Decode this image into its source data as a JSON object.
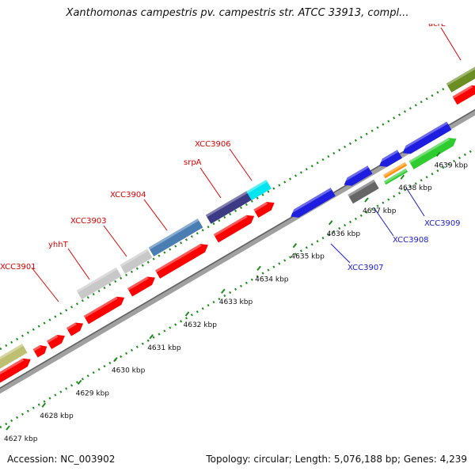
{
  "header": {
    "title": "Xanthomonas campestris pv. campestris str. ATCC 33913, compl..."
  },
  "footer": {
    "accession": "Accession: NC_003902",
    "summary": "Topology: circular; Length: 5,076,188 bp; Genes: 4,239"
  },
  "ruler": {
    "unit_suffix": " kbp",
    "ticks": [
      {
        "kbp": "4627"
      },
      {
        "kbp": "4628"
      },
      {
        "kbp": "4629"
      },
      {
        "kbp": "4630"
      },
      {
        "kbp": "4631"
      },
      {
        "kbp": "4632"
      },
      {
        "kbp": "4633"
      },
      {
        "kbp": "4634"
      },
      {
        "kbp": "4635"
      },
      {
        "kbp": "4636"
      },
      {
        "kbp": "4637"
      },
      {
        "kbp": "4638"
      },
      {
        "kbp": "4639"
      }
    ]
  },
  "colors": {
    "backbone": "#a0a0a0",
    "dots": "#1e8c1e",
    "forward_label": "#e00000",
    "reverse_label": "#1a1ad0",
    "red_feature": "#ff0000",
    "blue_feature": "#1e1ee0",
    "gray_feature": "#c8c8c8",
    "steelblue_feature": "#4a7eb3",
    "darkblue_feature": "#3d3a85",
    "cyan_feature": "#00e5f0",
    "olive_feature": "#bfbf72",
    "acrE_feature": "#6b8e23",
    "darkgray_feature": "#666666",
    "orange_feature": "#ff8c00",
    "green_feature": "#2ecc2e"
  },
  "genes": {
    "forward": [
      {
        "label": "XCC3901"
      },
      {
        "label": "yhhT"
      },
      {
        "label": "XCC3903"
      },
      {
        "label": "XCC3904"
      },
      {
        "label": "srpA"
      },
      {
        "label": "XCC3906"
      },
      {
        "label": "acrE"
      }
    ],
    "reverse": [
      {
        "label": "XCC3907"
      },
      {
        "label": "XCC3908"
      },
      {
        "label": "XCC3909"
      }
    ]
  }
}
